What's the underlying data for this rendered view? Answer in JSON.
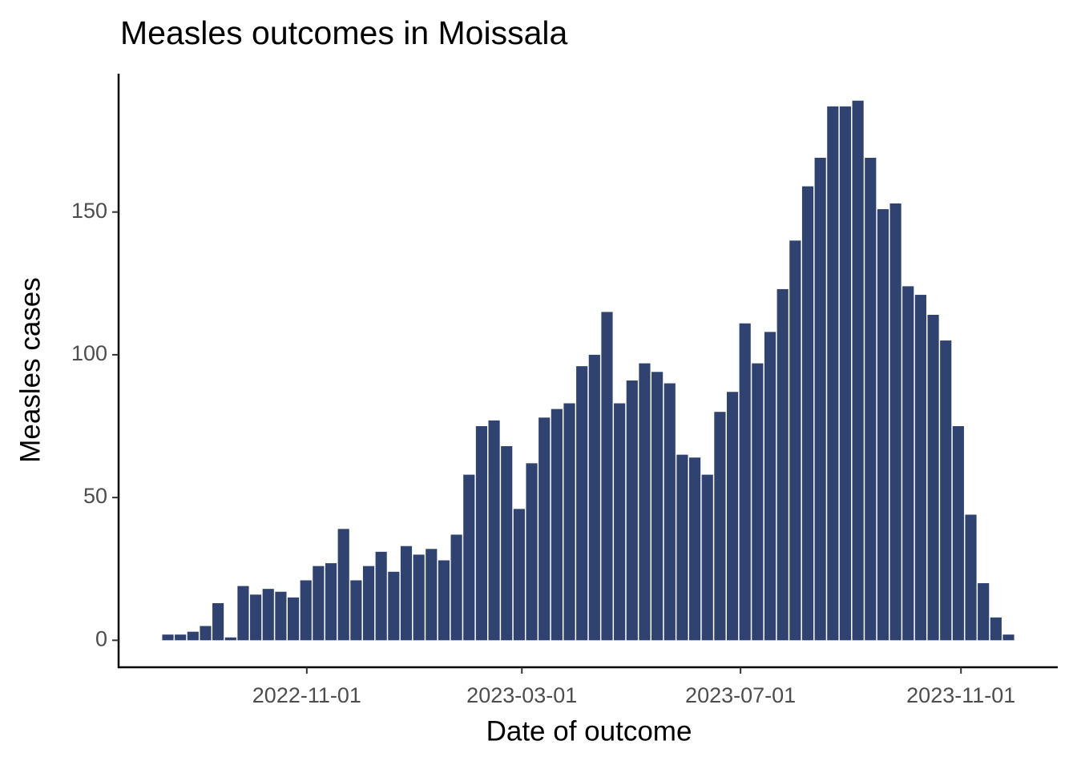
{
  "chart_data": {
    "type": "histogram",
    "title": "Measles outcomes in Moissala",
    "x_label": "Date of outcome",
    "y_label": "Measles cases",
    "bins": [
      "2022-08-12",
      "2022-08-19",
      "2022-08-26",
      "2022-09-02",
      "2022-09-09",
      "2022-09-16",
      "2022-09-23",
      "2022-09-30",
      "2022-10-07",
      "2022-10-14",
      "2022-10-21",
      "2022-10-28",
      "2022-11-04",
      "2022-11-11",
      "2022-11-18",
      "2022-11-25",
      "2022-12-02",
      "2022-12-09",
      "2022-12-16",
      "2022-12-23",
      "2022-12-30",
      "2023-01-06",
      "2023-01-13",
      "2023-01-20",
      "2023-01-27",
      "2023-02-03",
      "2023-02-10",
      "2023-02-17",
      "2023-02-24",
      "2023-03-03",
      "2023-03-10",
      "2023-03-17",
      "2023-03-24",
      "2023-03-31",
      "2023-04-07",
      "2023-04-14",
      "2023-04-21",
      "2023-04-28",
      "2023-05-05",
      "2023-05-12",
      "2023-05-19",
      "2023-05-26",
      "2023-06-02",
      "2023-06-09",
      "2023-06-16",
      "2023-06-23",
      "2023-06-30",
      "2023-07-07",
      "2023-07-14",
      "2023-07-21",
      "2023-07-28",
      "2023-08-04",
      "2023-08-11",
      "2023-08-18",
      "2023-08-25",
      "2023-09-01",
      "2023-09-08",
      "2023-09-15",
      "2023-09-22",
      "2023-09-29",
      "2023-10-06",
      "2023-10-13",
      "2023-10-20",
      "2023-10-27",
      "2023-11-03",
      "2023-11-10",
      "2023-11-17",
      "2023-11-24",
      "2023-12-01"
    ],
    "values": [
      2,
      2,
      3,
      5,
      13,
      1,
      19,
      16,
      18,
      17,
      15,
      21,
      26,
      27,
      39,
      21,
      26,
      31,
      24,
      33,
      30,
      32,
      28,
      37,
      58,
      75,
      77,
      68,
      46,
      62,
      78,
      81,
      83,
      96,
      100,
      115,
      83,
      91,
      97,
      94,
      90,
      65,
      64,
      58,
      80,
      87,
      111,
      97,
      108,
      123,
      140,
      159,
      169,
      187,
      187,
      189,
      169,
      151,
      153,
      124,
      121,
      114,
      105,
      75,
      44,
      20,
      8,
      2
    ],
    "color": "#2f4270",
    "xlim": [
      "2022-07-19",
      "2023-12-25"
    ],
    "xticks": [
      "2022-11-01",
      "2023-03-01",
      "2023-07-01",
      "2023-11-01"
    ],
    "ylim": [
      -9.45,
      198.45
    ],
    "yticks": [
      0,
      50,
      100,
      150
    ],
    "grid": false
  }
}
